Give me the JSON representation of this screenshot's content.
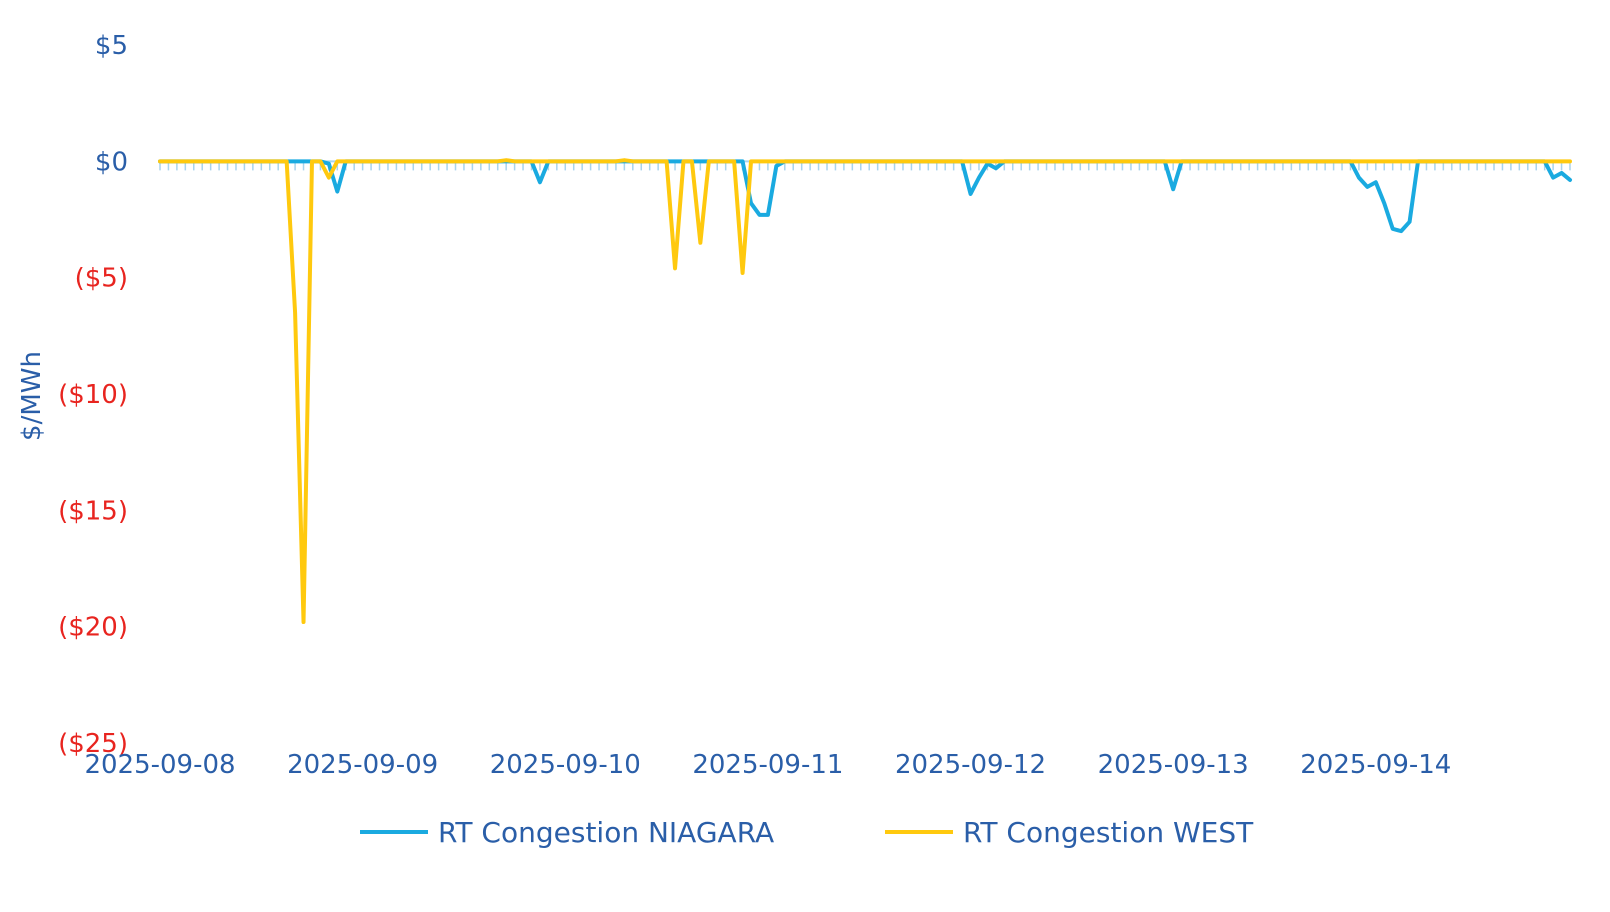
{
  "chart_data": {
    "type": "line",
    "title": "",
    "xlabel": "",
    "ylabel": "$/MWh",
    "ylim": [
      -25,
      5
    ],
    "y_ticks": [
      {
        "value": 5,
        "label": "$5"
      },
      {
        "value": 0,
        "label": "$0"
      },
      {
        "value": -5,
        "label": "($5)"
      },
      {
        "value": -10,
        "label": "($10)"
      },
      {
        "value": -15,
        "label": "($15)"
      },
      {
        "value": -20,
        "label": "($20)"
      },
      {
        "value": -25,
        "label": "($25)"
      }
    ],
    "x_ticks": [
      "2025-09-08",
      "2025-09-09",
      "2025-09-10",
      "2025-09-11",
      "2025-09-12",
      "2025-09-13",
      "2025-09-14"
    ],
    "x_range": [
      "2025-09-08 00:00",
      "2025-09-14 23:00"
    ],
    "grid": false,
    "legend_position": "bottom",
    "colors": {
      "positive_tick": "#2a5ea8",
      "negative_tick": "#e8241f"
    },
    "series": [
      {
        "name": "RT Congestion NIAGARA",
        "color": "#1aaae0",
        "points": [
          [
            "2025-09-08 00:00",
            0
          ],
          [
            "2025-09-08 19:00",
            0
          ],
          [
            "2025-09-08 20:00",
            -0.1
          ],
          [
            "2025-09-08 21:00",
            -1.3
          ],
          [
            "2025-09-08 22:00",
            0
          ],
          [
            "2025-09-09 20:00",
            0
          ],
          [
            "2025-09-09 21:00",
            -0.9
          ],
          [
            "2025-09-09 22:00",
            0
          ],
          [
            "2025-09-10 21:00",
            0
          ],
          [
            "2025-09-10 22:00",
            -1.8
          ],
          [
            "2025-09-10 23:00",
            -2.3
          ],
          [
            "2025-09-11 00:00",
            -2.3
          ],
          [
            "2025-09-11 01:00",
            -0.2
          ],
          [
            "2025-09-11 02:00",
            0
          ],
          [
            "2025-09-11 23:00",
            0
          ],
          [
            "2025-09-12 00:00",
            -1.4
          ],
          [
            "2025-09-12 01:00",
            -0.7
          ],
          [
            "2025-09-12 02:00",
            -0.1
          ],
          [
            "2025-09-12 03:00",
            -0.3
          ],
          [
            "2025-09-12 04:00",
            0
          ],
          [
            "2025-09-12 23:00",
            0
          ],
          [
            "2025-09-13 00:00",
            -1.2
          ],
          [
            "2025-09-13 01:00",
            0
          ],
          [
            "2025-09-13 21:00",
            0
          ],
          [
            "2025-09-13 22:00",
            -0.7
          ],
          [
            "2025-09-13 23:00",
            -1.1
          ],
          [
            "2025-09-14 00:00",
            -0.9
          ],
          [
            "2025-09-14 01:00",
            -1.8
          ],
          [
            "2025-09-14 02:00",
            -2.9
          ],
          [
            "2025-09-14 03:00",
            -3.0
          ],
          [
            "2025-09-14 04:00",
            -2.6
          ],
          [
            "2025-09-14 05:00",
            0
          ],
          [
            "2025-09-14 20:00",
            0
          ],
          [
            "2025-09-14 21:00",
            -0.7
          ],
          [
            "2025-09-14 22:00",
            -0.5
          ],
          [
            "2025-09-14 23:00",
            -0.8
          ]
        ]
      },
      {
        "name": "RT Congestion WEST",
        "color": "#ffc90e",
        "points": [
          [
            "2025-09-08 00:00",
            0
          ],
          [
            "2025-09-08 15:00",
            0
          ],
          [
            "2025-09-08 16:00",
            -6.5
          ],
          [
            "2025-09-08 17:00",
            -19.8
          ],
          [
            "2025-09-08 18:00",
            0
          ],
          [
            "2025-09-08 19:00",
            0
          ],
          [
            "2025-09-08 20:00",
            -0.7
          ],
          [
            "2025-09-08 21:00",
            0
          ],
          [
            "2025-09-09 16:00",
            0
          ],
          [
            "2025-09-09 17:00",
            0.05
          ],
          [
            "2025-09-09 18:00",
            0
          ],
          [
            "2025-09-10 06:00",
            0
          ],
          [
            "2025-09-10 07:00",
            0.05
          ],
          [
            "2025-09-10 08:00",
            0
          ],
          [
            "2025-09-10 12:00",
            0
          ],
          [
            "2025-09-10 13:00",
            -4.6
          ],
          [
            "2025-09-10 14:00",
            0
          ],
          [
            "2025-09-10 15:00",
            0
          ],
          [
            "2025-09-10 16:00",
            -3.5
          ],
          [
            "2025-09-10 17:00",
            0
          ],
          [
            "2025-09-10 20:00",
            0
          ],
          [
            "2025-09-10 21:00",
            -4.8
          ],
          [
            "2025-09-10 22:00",
            0
          ],
          [
            "2025-09-14 23:00",
            0
          ]
        ]
      }
    ]
  }
}
